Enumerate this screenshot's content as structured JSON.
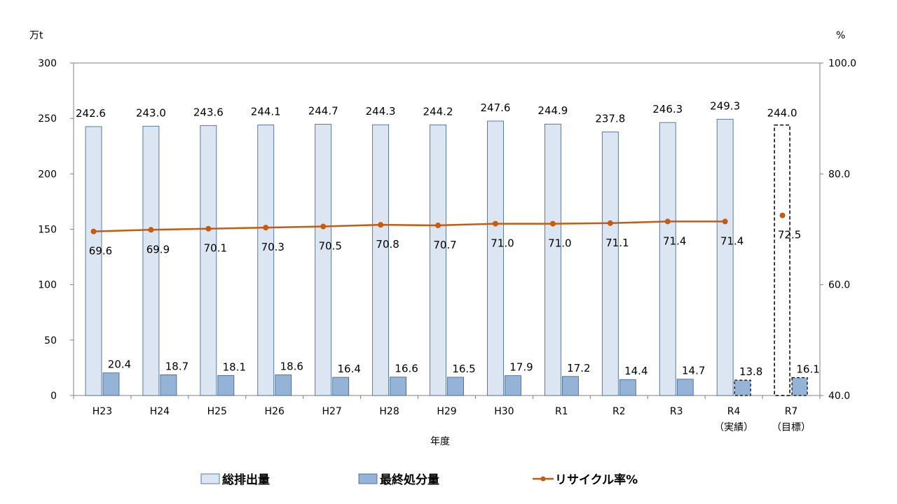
{
  "chart_data": {
    "type": "bar+line",
    "categories": [
      "H23",
      "H24",
      "H25",
      "H26",
      "H27",
      "H28",
      "H29",
      "H30",
      "R1",
      "R2",
      "R3",
      "R4",
      "R7"
    ],
    "category_sublabels": [
      "",
      "",
      "",
      "",
      "",
      "",
      "",
      "",
      "",
      "",
      "",
      "（実績）",
      "（目標）"
    ],
    "xlabel": "年度",
    "y_left": {
      "unit": "万t",
      "min": 0,
      "max": 300,
      "ticks": [
        "0",
        "50",
        "100",
        "150",
        "200",
        "250",
        "300"
      ]
    },
    "y_right": {
      "unit": "%",
      "min": 40,
      "max": 100,
      "ticks": [
        "40.0",
        "60.0",
        "80.0",
        "100.0"
      ]
    },
    "series": [
      {
        "name": "総排出量",
        "kind": "bar",
        "axis": "left",
        "color": "#dce6f2",
        "values": [
          242.6,
          243.0,
          243.6,
          244.1,
          244.7,
          244.3,
          244.2,
          247.6,
          244.9,
          237.8,
          246.3,
          249.3,
          244.0
        ],
        "labels": [
          "242.6",
          "243.0",
          "243.6",
          "244.1",
          "244.7",
          "244.3",
          "244.2",
          "247.6",
          "244.9",
          "237.8",
          "246.3",
          "249.3",
          "244.0"
        ]
      },
      {
        "name": "最終処分量",
        "kind": "bar",
        "axis": "left",
        "color": "#95b3d7",
        "values": [
          20.4,
          18.7,
          18.1,
          18.6,
          16.4,
          16.6,
          16.5,
          17.9,
          17.2,
          14.4,
          14.7,
          13.8,
          16.1
        ],
        "labels": [
          "20.4",
          "18.7",
          "18.1",
          "18.6",
          "16.4",
          "16.6",
          "16.5",
          "17.9",
          "17.2",
          "14.4",
          "14.7",
          "13.8",
          "16.1"
        ]
      },
      {
        "name": "リサイクル率%",
        "kind": "line",
        "axis": "right",
        "color": "#c55a11",
        "values": [
          69.6,
          69.9,
          70.1,
          70.3,
          70.5,
          70.8,
          70.7,
          71.0,
          71.0,
          71.1,
          71.4,
          71.4,
          72.5
        ],
        "labels": [
          "69.6",
          "69.9",
          "70.1",
          "70.3",
          "70.5",
          "70.8",
          "70.7",
          "71.0",
          "71.0",
          "71.1",
          "71.4",
          "71.4",
          "72.5"
        ]
      }
    ],
    "target_category": "R7",
    "legend_position": "bottom"
  }
}
